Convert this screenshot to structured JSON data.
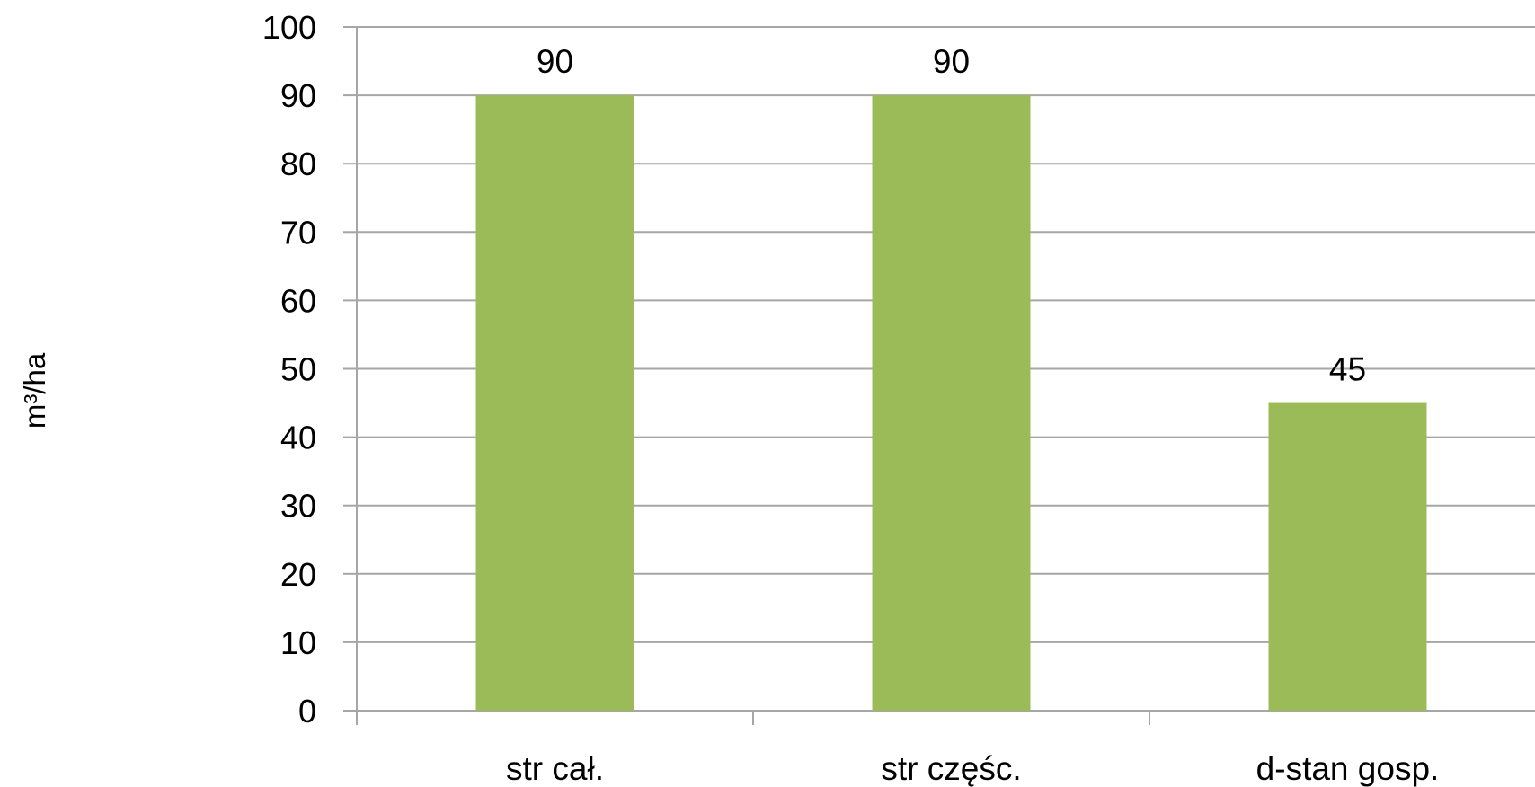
{
  "chart_data": {
    "type": "bar",
    "categories": [
      "str cał.",
      "str częśc.",
      "d-stan gosp."
    ],
    "series": [
      {
        "values": [
          90,
          90,
          45
        ],
        "color": "#9BBB59"
      }
    ],
    "data_labels": [
      "90",
      "90",
      "45"
    ],
    "ylabel": "m³/ha",
    "ylim": [
      0,
      100
    ],
    "ytick_step": 10,
    "grid": true,
    "gridline_color": "#A6A6A6",
    "legend": "none"
  }
}
